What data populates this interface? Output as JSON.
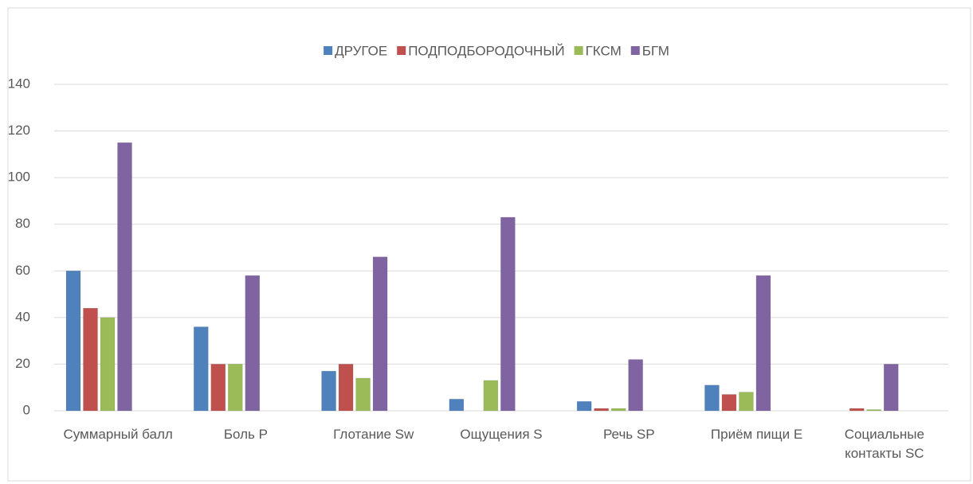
{
  "chart_data": {
    "type": "bar",
    "categories": [
      "Суммарный балл",
      "Боль P",
      "Глотание Sw",
      "Ощущения S",
      "Речь SP",
      "Приём пищи E",
      "Социальные контакты SC"
    ],
    "series": [
      {
        "name": "ДРУГОЕ",
        "color": "#4f81bd",
        "values": [
          60,
          36,
          17,
          5,
          4,
          11,
          0
        ]
      },
      {
        "name": "ПОДПОДБОРОДОЧНЫЙ",
        "color": "#c0504d",
        "values": [
          44,
          20,
          20,
          0,
          1,
          7,
          1
        ]
      },
      {
        "name": "ГКСМ",
        "color": "#9bbb59",
        "values": [
          40,
          20,
          14,
          13,
          1,
          8,
          0.5
        ]
      },
      {
        "name": "БГМ",
        "color": "#8064a2",
        "values": [
          115,
          58,
          66,
          83,
          22,
          58,
          20
        ]
      }
    ],
    "ylim": [
      0,
      140
    ],
    "yticks": [
      0,
      20,
      40,
      60,
      80,
      100,
      120,
      140
    ],
    "grid": true,
    "legend": "top"
  }
}
